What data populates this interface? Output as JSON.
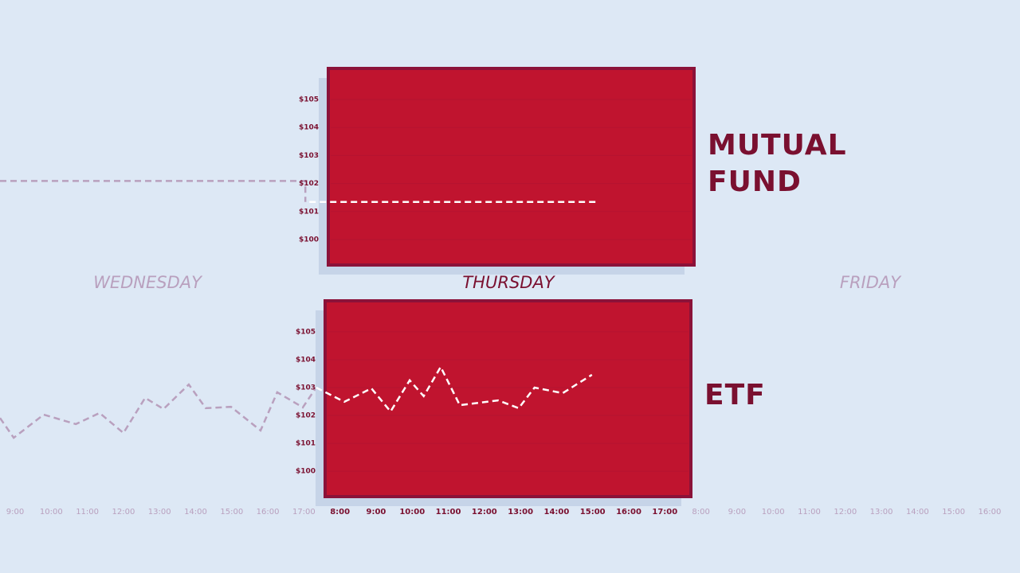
{
  "chart_data": [
    {
      "type": "line",
      "label": "MUTUAL FUND",
      "ylim": [
        99.09,
        106.11
      ],
      "yticks": [
        {
          "value": 100,
          "label": "$100"
        },
        {
          "value": 101,
          "label": "$101"
        },
        {
          "value": 102,
          "label": "$102"
        },
        {
          "value": 103,
          "label": "$103"
        },
        {
          "value": 104,
          "label": "$104"
        },
        {
          "value": 105,
          "label": "$105"
        }
      ],
      "series": [
        {
          "color": "#b9a0be",
          "x": [
            -0.42,
            8.04,
            8.04
          ],
          "values": [
            102.09,
            102.09,
            101.34
          ]
        },
        {
          "color": "#ffffff",
          "x": [
            8.15,
            16.09
          ],
          "values": [
            101.34,
            101.34
          ]
        }
      ]
    },
    {
      "type": "line",
      "label": "ETF",
      "ylim": [
        99.09,
        106.11
      ],
      "yticks": [
        {
          "value": 100,
          "label": "$100"
        },
        {
          "value": 101,
          "label": "$101"
        },
        {
          "value": 102,
          "label": "$102"
        },
        {
          "value": 103,
          "label": "$103"
        },
        {
          "value": 104,
          "label": "$104"
        },
        {
          "value": 105,
          "label": "$105"
        }
      ],
      "series": [
        {
          "color": "#b9a0be",
          "x": [
            -0.42,
            -0.04,
            0.79,
            1.68,
            2.34,
            3.0,
            3.6,
            4.11,
            4.81,
            5.28,
            5.98,
            6.8,
            7.26,
            7.97,
            8.34
          ],
          "values": [
            101.91,
            101.2,
            102.03,
            101.69,
            102.09,
            101.37,
            102.63,
            102.23,
            103.11,
            102.26,
            102.31,
            101.46,
            102.83,
            102.29,
            103.0
          ]
        },
        {
          "color": "#ffffff",
          "x": [
            8.34,
            9.12,
            9.87,
            10.4,
            10.93,
            11.32,
            11.79,
            12.32,
            13.38,
            13.95,
            14.39,
            15.17,
            15.98
          ],
          "values": [
            103.0,
            102.49,
            102.97,
            102.14,
            103.26,
            102.69,
            103.74,
            102.37,
            102.54,
            102.26,
            103.0,
            102.8,
            103.46
          ]
        }
      ]
    }
  ],
  "xlim": [
    -0.42,
    27.84
  ],
  "days": [
    {
      "label": "WEDNESDAY",
      "active": false,
      "ticks": [
        {
          "value": 0,
          "label": "9:00"
        },
        {
          "value": 1,
          "label": "10:00"
        },
        {
          "value": 2,
          "label": "11:00"
        },
        {
          "value": 3,
          "label": "12:00"
        },
        {
          "value": 4,
          "label": "13:00"
        },
        {
          "value": 5,
          "label": "14:00"
        },
        {
          "value": 6,
          "label": "15:00"
        },
        {
          "value": 7,
          "label": "16:00"
        },
        {
          "value": 8,
          "label": "17:00"
        }
      ]
    },
    {
      "label": "THURSDAY",
      "active": true,
      "ticks": [
        {
          "value": 9,
          "label": "8:00"
        },
        {
          "value": 10,
          "label": "9:00"
        },
        {
          "value": 11,
          "label": "10:00"
        },
        {
          "value": 12,
          "label": "11:00"
        },
        {
          "value": 13,
          "label": "12:00"
        },
        {
          "value": 14,
          "label": "13:00"
        },
        {
          "value": 15,
          "label": "14:00"
        },
        {
          "value": 16,
          "label": "15:00"
        },
        {
          "value": 17,
          "label": "16:00"
        },
        {
          "value": 18,
          "label": "17:00"
        }
      ]
    },
    {
      "label": "FRIDAY",
      "active": false,
      "ticks": [
        {
          "value": 19,
          "label": "8:00"
        },
        {
          "value": 20,
          "label": "9:00"
        },
        {
          "value": 21,
          "label": "10:00"
        },
        {
          "value": 22,
          "label": "11:00"
        },
        {
          "value": 23,
          "label": "12:00"
        },
        {
          "value": 24,
          "label": "13:00"
        },
        {
          "value": 25,
          "label": "14:00"
        },
        {
          "value": 26,
          "label": "15:00"
        },
        {
          "value": 27,
          "label": "16:00"
        }
      ]
    }
  ]
}
